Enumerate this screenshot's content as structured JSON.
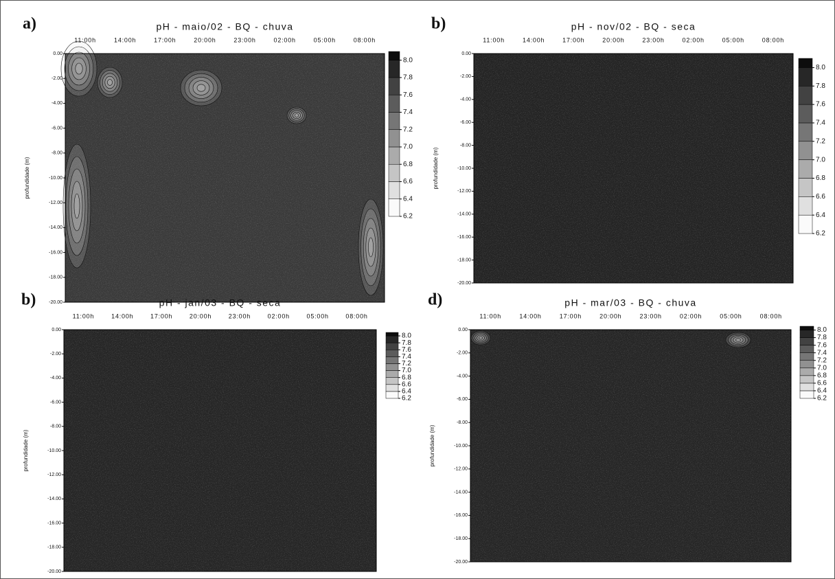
{
  "chart_data": [
    {
      "type": "contour",
      "panel": "a)",
      "title": "pH - maio/02 - BQ - chuva",
      "categories": [
        "11:00h",
        "14:00h",
        "17:00h",
        "20:00h",
        "23:00h",
        "02:00h",
        "05:00h",
        "08:00h"
      ],
      "ylabel": "profundidade (m)",
      "ylim": [
        -20,
        0
      ],
      "yticks": [
        {
          "value": 0,
          "label": "0.00"
        },
        {
          "value": -2,
          "label": "-2.00"
        },
        {
          "value": -4,
          "label": "-4.00"
        },
        {
          "value": -6,
          "label": "-6.00"
        },
        {
          "value": -8,
          "label": "-8.00"
        },
        {
          "value": -10,
          "label": "-10.00"
        },
        {
          "value": -12,
          "label": "-12.00"
        },
        {
          "value": -14,
          "label": "-14.00"
        },
        {
          "value": -16,
          "label": "-16.00"
        },
        {
          "value": -18,
          "label": "-18.00"
        },
        {
          "value": -20,
          "label": "-20.00"
        }
      ],
      "zlim": [
        6.2,
        8.1
      ],
      "zticks": [
        6.2,
        6.4,
        6.6,
        6.8,
        {
          "value": 7,
          "label": "7.0"
        },
        7.2,
        7.4,
        7.6,
        7.8,
        {
          "value": 8,
          "label": "8.0"
        }
      ]
    },
    {
      "type": "contour",
      "panel": "b)",
      "title": "pH - nov/02 - BQ - seca",
      "categories": [
        "11:00h",
        "14:00h",
        "17:00h",
        "20:00h",
        "23:00h",
        "02:00h",
        "05:00h",
        "08:00h"
      ],
      "ylabel": "profundidade (m)",
      "ylim": [
        -20,
        0
      ],
      "yticks": [
        {
          "value": 0,
          "label": "0.00"
        },
        {
          "value": -2,
          "label": "-2.00"
        },
        {
          "value": -4,
          "label": "-4.00"
        },
        {
          "value": -6,
          "label": "-6.00"
        },
        {
          "value": -8,
          "label": "-8.00"
        },
        {
          "value": -10,
          "label": "-10.00"
        },
        {
          "value": -12,
          "label": "-12.00"
        },
        {
          "value": -14,
          "label": "-14.00"
        },
        {
          "value": -16,
          "label": "-16.00"
        },
        {
          "value": -18,
          "label": "-18.00"
        },
        {
          "value": -20,
          "label": "-20.00"
        }
      ],
      "zlim": [
        6.2,
        8.1
      ],
      "zticks": [
        6.2,
        6.4,
        6.6,
        6.8,
        {
          "value": 7,
          "label": "7.0"
        },
        7.2,
        7.4,
        7.6,
        7.8,
        {
          "value": 8,
          "label": "8.0"
        }
      ]
    },
    {
      "type": "contour",
      "panel": "b)",
      "title": "pH - jan/03 - BQ - seca",
      "categories": [
        "11:00h",
        "14:00h",
        "17:00h",
        "20:00h",
        "23:00h",
        "02:00h",
        "05:00h",
        "08:00h"
      ],
      "ylabel": "profundidade (m)",
      "ylim": [
        -20,
        0
      ],
      "yticks": [
        {
          "value": 0,
          "label": "0.00"
        },
        {
          "value": -2,
          "label": "-2.00"
        },
        {
          "value": -4,
          "label": "-4.00"
        },
        {
          "value": -6,
          "label": "-6.00"
        },
        {
          "value": -8,
          "label": "-8.00"
        },
        {
          "value": -10,
          "label": "-10.00"
        },
        {
          "value": -12,
          "label": "-12.00"
        },
        {
          "value": -14,
          "label": "-14.00"
        },
        {
          "value": -16,
          "label": "-16.00"
        },
        {
          "value": -18,
          "label": "-18.00"
        },
        {
          "value": -20,
          "label": "-20.00"
        }
      ],
      "zlim": [
        6.2,
        8.1
      ],
      "zticks": [
        6.2,
        6.4,
        6.6,
        6.8,
        {
          "value": 7,
          "label": "7.0"
        },
        7.2,
        7.4,
        7.6,
        7.8,
        {
          "value": 8,
          "label": "8.0"
        }
      ]
    },
    {
      "type": "contour",
      "panel": "d)",
      "title": "pH - mar/03 - BQ - chuva",
      "categories": [
        "11:00h",
        "14:00h",
        "17:00h",
        "20:00h",
        "23:00h",
        "02:00h",
        "05:00h",
        "08:00h"
      ],
      "ylabel": "profundidade (m)",
      "ylim": [
        -20,
        0
      ],
      "yticks": [
        {
          "value": 0,
          "label": "0.00"
        },
        {
          "value": -2,
          "label": "-2.00"
        },
        {
          "value": -4,
          "label": "-4.00"
        },
        {
          "value": -6,
          "label": "-6.00"
        },
        {
          "value": -8,
          "label": "-8.00"
        },
        {
          "value": -10,
          "label": "-10.00"
        },
        {
          "value": -12,
          "label": "-12.00"
        },
        {
          "value": -14,
          "label": "-14.00"
        },
        {
          "value": -16,
          "label": "-16.00"
        },
        {
          "value": -18,
          "label": "-18.00"
        },
        {
          "value": -20,
          "label": "-20.00"
        }
      ],
      "zlim": [
        6.2,
        8.1
      ],
      "zticks": [
        6.2,
        6.4,
        6.6,
        6.8,
        {
          "value": 7,
          "label": "7.0"
        },
        7.2,
        7.4,
        7.6,
        7.8,
        {
          "value": 8,
          "label": "8.0"
        }
      ]
    }
  ]
}
